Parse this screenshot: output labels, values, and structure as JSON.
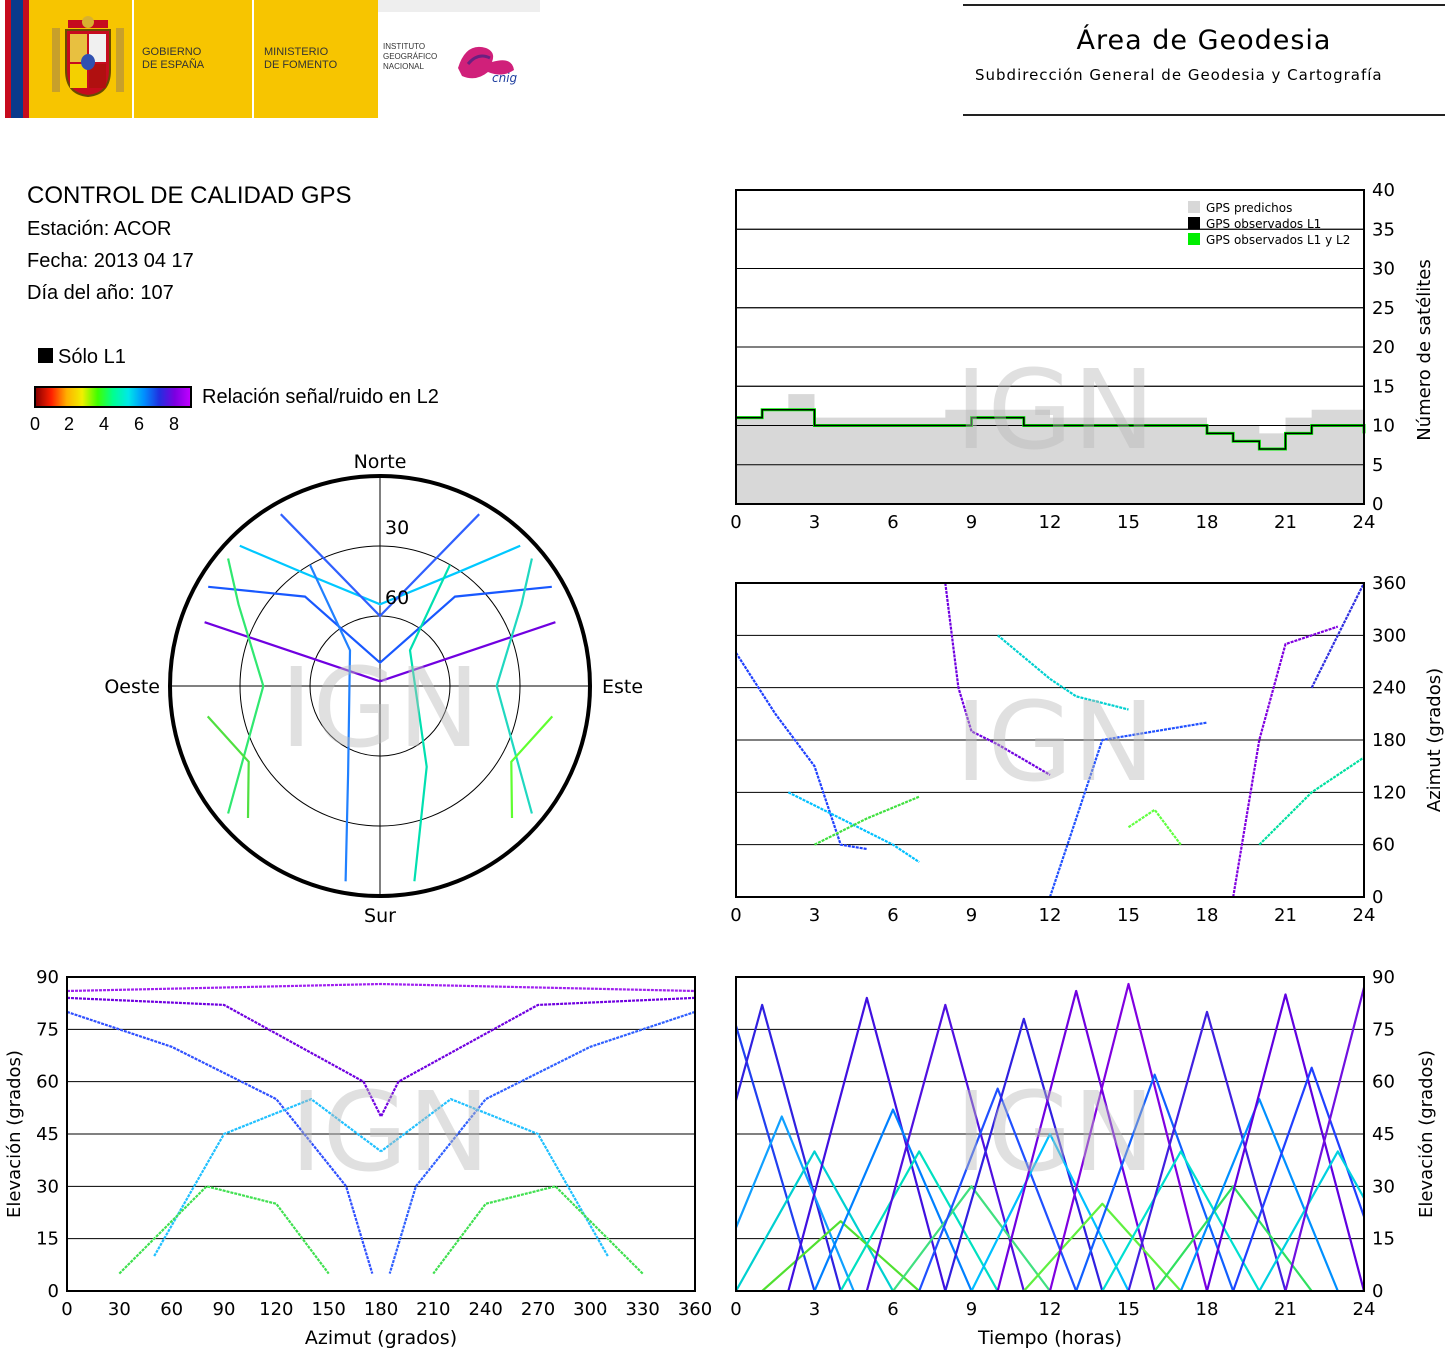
{
  "header": {
    "gov_line1": "GOBIERNO",
    "gov_line2": "DE ESPAÑA",
    "min_line1": "MINISTERIO",
    "min_line2": "DE FOMENTO",
    "ign_line1": "INSTITUTO",
    "ign_line2": "GEOGRÁFICO",
    "ign_line3": "NACIONAL",
    "cnig_logo": "cnig",
    "area_title": "Área de Geodesia",
    "area_subtitle": "Subdirección General de Geodesia y Cartografía",
    "brand_color": "#f7c500"
  },
  "info": {
    "title": "CONTROL DE CALIDAD GPS",
    "station": "Estación: ACOR",
    "date": "Fecha: 2013 04 17",
    "doy": "Día del año: 107",
    "legend_l1": "Sólo L1",
    "colorbar_label": "Relación señal/ruido en L2",
    "colorbar_ticks": [
      "0",
      "2",
      "4",
      "6",
      "8"
    ]
  },
  "watermark": "IGN",
  "chart_data": [
    {
      "id": "sats",
      "type": "area",
      "xlim": [
        0,
        24
      ],
      "ylim": [
        0,
        40
      ],
      "xticks": [
        "0",
        "3",
        "6",
        "9",
        "12",
        "15",
        "18",
        "21",
        "24"
      ],
      "yticks": [
        "0",
        "5",
        "10",
        "15",
        "20",
        "25",
        "30",
        "35",
        "40"
      ],
      "ylabel": "Número de satélites",
      "grid": true,
      "legend_position": "top-right",
      "legend": [
        "GPS predichos",
        "GPS observados L1",
        "GPS observados L1 y L2"
      ],
      "colors": [
        "#d8d8d8",
        "#000000",
        "#00ee00"
      ],
      "hours": [
        0,
        1,
        2,
        3,
        4,
        5,
        6,
        7,
        8,
        9,
        10,
        11,
        12,
        13,
        14,
        15,
        16,
        17,
        18,
        19,
        20,
        21,
        22,
        23,
        24
      ],
      "predicted": [
        11,
        12,
        14,
        11,
        11,
        11,
        11,
        11,
        12,
        12,
        12,
        12,
        11,
        11,
        11,
        11,
        11,
        11,
        10,
        10,
        9,
        11,
        12,
        12,
        10
      ],
      "observed_l1": [
        11,
        12,
        12,
        10,
        10,
        10,
        10,
        10,
        10,
        11,
        11,
        10,
        10,
        10,
        10,
        10,
        10,
        10,
        9,
        8,
        7,
        9,
        10,
        10,
        9
      ],
      "observed_l1_l2": [
        11,
        12,
        12,
        10,
        10,
        10,
        10,
        10,
        10,
        11,
        11,
        10,
        10,
        10,
        10,
        10,
        10,
        10,
        9,
        8,
        7,
        9,
        10,
        10,
        9
      ]
    },
    {
      "id": "skyplot",
      "type": "scatter",
      "subtype": "polar",
      "labels": [
        "Norte",
        "Sur",
        "Este",
        "Oeste"
      ],
      "rings": [
        "30",
        "60"
      ],
      "tracks": [
        {
          "color": "#00c8ff",
          "points": [
            [
              315,
              5
            ],
            [
              325,
              30
            ],
            [
              0,
              55
            ],
            [
              35,
              30
            ],
            [
              45,
              5
            ]
          ]
        },
        {
          "color": "#1858ff",
          "points": [
            [
              300,
              5
            ],
            [
              320,
              40
            ],
            [
              0,
              80
            ],
            [
              40,
              40
            ],
            [
              60,
              5
            ]
          ]
        },
        {
          "color": "#7000e0",
          "points": [
            [
              290,
              10
            ],
            [
              0,
              88
            ],
            [
              70,
              10
            ]
          ]
        },
        {
          "color": "#30e870",
          "points": [
            [
              230,
              5
            ],
            [
              270,
              40
            ],
            [
              300,
              20
            ],
            [
              310,
              5
            ]
          ]
        },
        {
          "color": "#20d8c0",
          "points": [
            [
              130,
              5
            ],
            [
              90,
              40
            ],
            [
              60,
              20
            ],
            [
              50,
              5
            ]
          ]
        },
        {
          "color": "#2080ff",
          "points": [
            [
              190,
              5
            ],
            [
              200,
              50
            ],
            [
              320,
              70
            ],
            [
              330,
              30
            ]
          ]
        },
        {
          "color": "#00e0b0",
          "points": [
            [
              170,
              5
            ],
            [
              150,
              50
            ],
            [
              40,
              70
            ],
            [
              30,
              30
            ]
          ]
        },
        {
          "color": "#50e040",
          "points": [
            [
              225,
              10
            ],
            [
              240,
              25
            ],
            [
              260,
              15
            ]
          ]
        },
        {
          "color": "#60ff30",
          "points": [
            [
              135,
              10
            ],
            [
              120,
              25
            ],
            [
              100,
              15
            ]
          ]
        },
        {
          "color": "#3060ff",
          "points": [
            [
              330,
              5
            ],
            [
              0,
              60
            ],
            [
              30,
              5
            ]
          ]
        }
      ]
    },
    {
      "id": "azimut",
      "type": "scatter",
      "xlim": [
        0,
        24
      ],
      "ylim": [
        0,
        360
      ],
      "xticks": [
        "0",
        "3",
        "6",
        "9",
        "12",
        "15",
        "18",
        "21",
        "24"
      ],
      "yticks": [
        "0",
        "60",
        "120",
        "180",
        "240",
        "300",
        "360"
      ],
      "ylabel": "Azimut (grados)",
      "grid": true,
      "tracks": [
        {
          "color": "#2040ff",
          "points": [
            [
              0,
              280
            ],
            [
              1.5,
              210
            ],
            [
              3,
              150
            ],
            [
              4,
              60
            ],
            [
              5,
              55
            ]
          ]
        },
        {
          "color": "#00c0ff",
          "points": [
            [
              2,
              120
            ],
            [
              4,
              90
            ],
            [
              6,
              60
            ],
            [
              7,
              40
            ]
          ]
        },
        {
          "color": "#40e040",
          "points": [
            [
              3,
              60
            ],
            [
              5,
              90
            ],
            [
              7,
              115
            ]
          ]
        },
        {
          "color": "#7000e0",
          "points": [
            [
              8,
              360
            ],
            [
              8.5,
              240
            ],
            [
              9,
              190
            ],
            [
              10,
              175
            ],
            [
              12,
              140
            ]
          ]
        },
        {
          "color": "#00d0d0",
          "points": [
            [
              10,
              300
            ],
            [
              12,
              250
            ],
            [
              13,
              230
            ],
            [
              15,
              215
            ]
          ]
        },
        {
          "color": "#2050ff",
          "points": [
            [
              12,
              0
            ],
            [
              13,
              90
            ],
            [
              14,
              180
            ],
            [
              16,
              190
            ],
            [
              18,
              200
            ]
          ]
        },
        {
          "color": "#60ff40",
          "points": [
            [
              15,
              80
            ],
            [
              16,
              100
            ],
            [
              17,
              60
            ]
          ]
        },
        {
          "color": "#8000e0",
          "points": [
            [
              19,
              0
            ],
            [
              20,
              180
            ],
            [
              21,
              290
            ],
            [
              23,
              310
            ]
          ]
        },
        {
          "color": "#00e0a0",
          "points": [
            [
              20,
              60
            ],
            [
              22,
              120
            ],
            [
              24,
              160
            ]
          ]
        },
        {
          "color": "#3030e0",
          "points": [
            [
              22,
              240
            ],
            [
              23,
              300
            ],
            [
              24,
              360
            ]
          ]
        }
      ]
    },
    {
      "id": "elev_az",
      "type": "scatter",
      "xlim": [
        0,
        360
      ],
      "ylim": [
        0,
        90
      ],
      "xticks": [
        "0",
        "30",
        "60",
        "90",
        "120",
        "150",
        "180",
        "210",
        "240",
        "270",
        "300",
        "330",
        "360"
      ],
      "yticks": [
        "0",
        "15",
        "30",
        "45",
        "60",
        "75",
        "90"
      ],
      "xlabel": "Azimut (grados)",
      "ylabel": "Elevación (grados)",
      "grid": true,
      "tracks": [
        {
          "color": "#3050ff",
          "points": [
            [
              0,
              80
            ],
            [
              60,
              70
            ],
            [
              120,
              55
            ],
            [
              160,
              30
            ],
            [
              175,
              5
            ]
          ]
        },
        {
          "color": "#7000e0",
          "points": [
            [
              0,
              84
            ],
            [
              90,
              82
            ],
            [
              170,
              60
            ],
            [
              180,
              50
            ]
          ]
        },
        {
          "color": "#20c0ff",
          "points": [
            [
              50,
              10
            ],
            [
              90,
              45
            ],
            [
              140,
              55
            ],
            [
              180,
              40
            ]
          ]
        },
        {
          "color": "#40e050",
          "points": [
            [
              30,
              5
            ],
            [
              80,
              30
            ],
            [
              120,
              25
            ],
            [
              150,
              5
            ]
          ]
        },
        {
          "color": "#3060ff",
          "points": [
            [
              360,
              80
            ],
            [
              300,
              70
            ],
            [
              240,
              55
            ],
            [
              200,
              30
            ],
            [
              185,
              5
            ]
          ]
        },
        {
          "color": "#7000e0",
          "points": [
            [
              360,
              84
            ],
            [
              270,
              82
            ],
            [
              190,
              60
            ],
            [
              180,
              50
            ]
          ]
        },
        {
          "color": "#20c0ff",
          "points": [
            [
              310,
              10
            ],
            [
              270,
              45
            ],
            [
              220,
              55
            ],
            [
              180,
              40
            ]
          ]
        },
        {
          "color": "#40e050",
          "points": [
            [
              330,
              5
            ],
            [
              280,
              30
            ],
            [
              240,
              25
            ],
            [
              210,
              5
            ]
          ]
        },
        {
          "color": "#a020f0",
          "points": [
            [
              0,
              86
            ],
            [
              180,
              88
            ],
            [
              360,
              86
            ]
          ]
        }
      ]
    },
    {
      "id": "elev_time",
      "type": "line",
      "xlim": [
        0,
        24
      ],
      "ylim": [
        0,
        90
      ],
      "xticks": [
        "0",
        "3",
        "6",
        "9",
        "12",
        "15",
        "18",
        "21",
        "24"
      ],
      "yticks": [
        "0",
        "15",
        "30",
        "45",
        "60",
        "75",
        "90"
      ],
      "xlabel": "Tiempo (horas)",
      "ylabel": "Elevación (grados)",
      "grid": true,
      "arcs": [
        {
          "start": -3,
          "end": 3,
          "peak": 76,
          "color": "#2040f0"
        },
        {
          "start": -2,
          "end": 4,
          "peak": 82,
          "color": "#3020e0"
        },
        {
          "start": -1,
          "end": 4.5,
          "peak": 50,
          "color": "#10a0ff"
        },
        {
          "start": 0,
          "end": 6,
          "peak": 40,
          "color": "#00d0d0"
        },
        {
          "start": 1,
          "end": 7,
          "peak": 20,
          "color": "#50e030"
        },
        {
          "start": 2,
          "end": 8,
          "peak": 84,
          "color": "#4010e0"
        },
        {
          "start": 3,
          "end": 9,
          "peak": 52,
          "color": "#0080ff"
        },
        {
          "start": 4,
          "end": 10,
          "peak": 40,
          "color": "#00e0c0"
        },
        {
          "start": 5,
          "end": 11,
          "peak": 82,
          "color": "#5010e0"
        },
        {
          "start": 6,
          "end": 12,
          "peak": 30,
          "color": "#40e080"
        },
        {
          "start": 7,
          "end": 13,
          "peak": 58,
          "color": "#2050ff"
        },
        {
          "start": 8,
          "end": 14,
          "peak": 78,
          "color": "#3020e0"
        },
        {
          "start": 9,
          "end": 15,
          "peak": 45,
          "color": "#00c0ff"
        },
        {
          "start": 10,
          "end": 16,
          "peak": 86,
          "color": "#7000e0"
        },
        {
          "start": 11,
          "end": 17,
          "peak": 25,
          "color": "#60f040"
        },
        {
          "start": 12,
          "end": 18,
          "peak": 88,
          "color": "#8000e0"
        },
        {
          "start": 13,
          "end": 19,
          "peak": 62,
          "color": "#1060ff"
        },
        {
          "start": 14,
          "end": 20,
          "peak": 40,
          "color": "#00e0d0"
        },
        {
          "start": 15,
          "end": 21,
          "peak": 80,
          "color": "#4020e0"
        },
        {
          "start": 16,
          "end": 22,
          "peak": 30,
          "color": "#30e060"
        },
        {
          "start": 17,
          "end": 23,
          "peak": 55,
          "color": "#0090ff"
        },
        {
          "start": 18,
          "end": 24,
          "peak": 85,
          "color": "#6000e0"
        },
        {
          "start": 19,
          "end": 25,
          "peak": 64,
          "color": "#2040ff"
        },
        {
          "start": 20,
          "end": 26,
          "peak": 40,
          "color": "#00d0e0"
        },
        {
          "start": 21,
          "end": 27,
          "peak": 87,
          "color": "#7010e0"
        }
      ]
    }
  ]
}
